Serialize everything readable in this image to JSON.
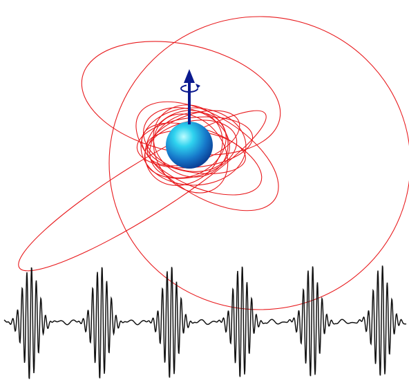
{
  "figure": {
    "background": "#ffffff",
    "orbit_color": "#e8191c",
    "waveform_color": "#111111",
    "body_colors": [
      "#bdfcff",
      "#2fd3ef",
      "#1676c9",
      "#0a3f95"
    ],
    "spin_arrow_color": "#0b1a8f",
    "icons": [
      "central-body",
      "spin-axis-arrow",
      "spin-rotation-icon"
    ]
  }
}
